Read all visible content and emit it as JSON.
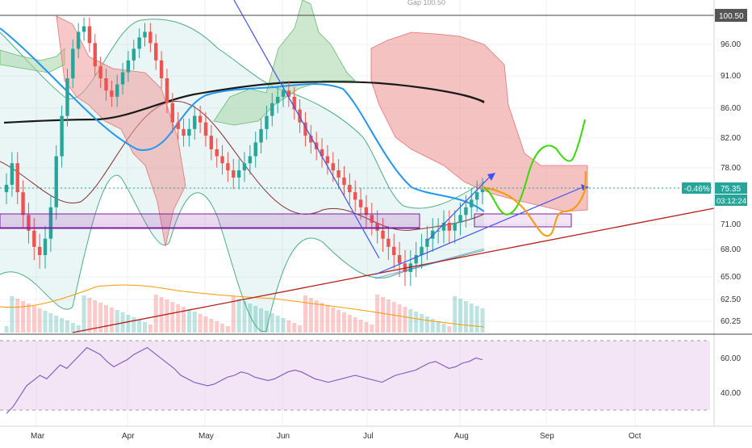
{
  "header": {
    "gap_label": "Gap 100.50"
  },
  "price_scale": {
    "ticks": [
      "96.00",
      "91.00",
      "86.00",
      "82.00",
      "78.00",
      "75.00",
      "71.00",
      "68.00",
      "65.00",
      "62.50",
      "60.25"
    ],
    "gap_level": "100.50",
    "last_change": "-0.46%",
    "last_price": "75.35",
    "countdown": "03:12:24"
  },
  "rsi_scale": {
    "ticks": [
      "60.00",
      "40.00"
    ]
  },
  "time_axis": {
    "labels": [
      "Mar",
      "Apr",
      "May",
      "Jun",
      "Jul",
      "Aug",
      "Sep",
      "Oct"
    ]
  },
  "colors": {
    "up": "#26a69a",
    "down": "#ef5350",
    "kumo_bull": "#a5d6a7",
    "kumo_bear": "#ef9a9a",
    "ma_blue": "#2196f3",
    "ma_black": "#1a1a1a",
    "rsi": "#7e57c2",
    "projection_green": "#33dd00",
    "projection_orange": "#ff9800",
    "trend_red": "#b71c1c",
    "trend_blue": "#3f51f5",
    "zone": "#9c27b0"
  },
  "chart_data": {
    "type": "candlestick",
    "x_range": [
      "Mar",
      "Oct"
    ],
    "ylim": [
      59.5,
      103
    ],
    "scale": "log",
    "price_axis_ticks": [
      96.0,
      91.0,
      86.0,
      82.0,
      78.0,
      75.0,
      71.0,
      68.0,
      65.0,
      62.5,
      60.25
    ],
    "horizontal_line": 100.5,
    "last_price": 75.35,
    "change_pct": -0.46,
    "series": [
      {
        "values": [
          76,
          79,
          75,
          72,
          70,
          68,
          67,
          69,
          73,
          80,
          86,
          92,
          97,
          100,
          101,
          98,
          94,
          92,
          90,
          89,
          91,
          93,
          95,
          97,
          99,
          100,
          98,
          95,
          92,
          88,
          85,
          84,
          83,
          84,
          86,
          85,
          83,
          81,
          80,
          79,
          78,
          77,
          78,
          79,
          80,
          82,
          84,
          86,
          88,
          89,
          90,
          89,
          87,
          85,
          83,
          82,
          81,
          80,
          79,
          78,
          77,
          76,
          75,
          74,
          73,
          72,
          71,
          70,
          69,
          68,
          67,
          66,
          65,
          66,
          67,
          68,
          69,
          70,
          70,
          71,
          70,
          71,
          72,
          73,
          74,
          75,
          75.35
        ]
      }
    ],
    "rsi": {
      "ylim": [
        30,
        70
      ],
      "ticks": [
        60,
        40
      ],
      "values": [
        28,
        32,
        38,
        44,
        47,
        50,
        48,
        52,
        56,
        54,
        58,
        62,
        66,
        64,
        62,
        58,
        55,
        57,
        59,
        62,
        64,
        66,
        63,
        60,
        57,
        54,
        50,
        48,
        46,
        45,
        44,
        45,
        47,
        49,
        50,
        52,
        51,
        49,
        48,
        47,
        48,
        50,
        52,
        53,
        52,
        50,
        48,
        47,
        46,
        47,
        48,
        49,
        50,
        49,
        48,
        47,
        46,
        48,
        50,
        51,
        52,
        53,
        55,
        57,
        58,
        56,
        54,
        55,
        57,
        58,
        60,
        59
      ]
    }
  }
}
